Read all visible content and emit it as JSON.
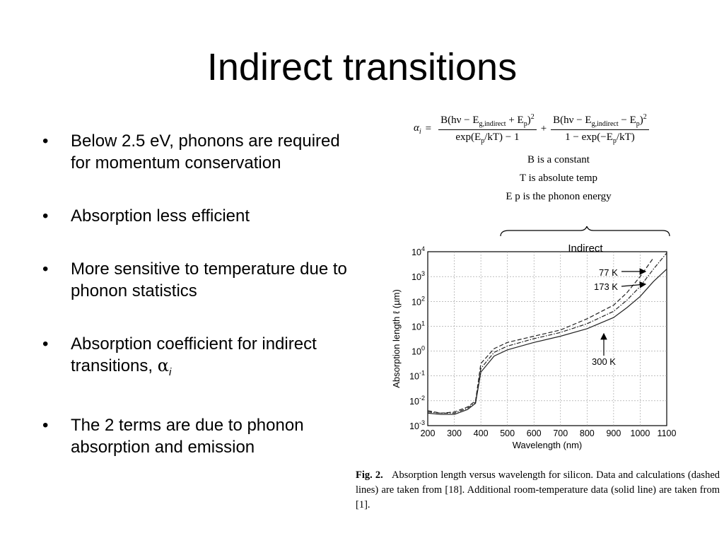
{
  "slide": {
    "title": "Indirect transitions",
    "bullets": [
      "Below 2.5 eV, phonons are required for momentum conservation",
      "Absorption less efficient",
      "More sensitive to temperature due to phonon statistics",
      "Absorption coefficient for indirect transitions, ",
      "The 2 terms are due to phonon absorption and emission"
    ],
    "alpha_symbol": "α",
    "alpha_subscript": "i"
  },
  "formula": {
    "lhs": "α",
    "lhs_sub": "i",
    "term1_num": "B(hν − E",
    "term1_num_sub": "g,indirect",
    "term1_num_rest": " + E",
    "term1_num_p": "p",
    "term1_num_end": ")",
    "term1_den": "exp(E",
    "term1_den_sub": "p",
    "term1_den_rest": "/kT) − 1",
    "term2_num": "B(hν − E",
    "term2_num_sub": "g,indirect",
    "term2_num_rest": " − E",
    "term2_num_p": "p",
    "term2_num_end": ")",
    "term2_den": "1 − exp(−E",
    "term2_den_sub": "p",
    "term2_den_rest": "/kT)",
    "sq": "2",
    "notes": [
      "B is a constant",
      "T is absolute temp",
      "E p  is the phonon energy"
    ]
  },
  "chart_data": {
    "type": "line",
    "xlabel": "Wavelength (nm)",
    "ylabel": "Absorption length ℓ (µm)",
    "xlim": [
      200,
      1100
    ],
    "ylim_log10": [
      -3,
      4
    ],
    "x_ticks": [
      "200",
      "300",
      "400",
      "500",
      "600",
      "700",
      "800",
      "900",
      "1000",
      "1100"
    ],
    "y_ticks": [
      "10-3",
      "10-2",
      "10-1",
      "100",
      "101",
      "102",
      "103",
      "104"
    ],
    "grid": true,
    "region_label": "Indirect",
    "annotations": [
      "77 K",
      "173 K",
      "300 K"
    ],
    "series": [
      {
        "name": "77 K",
        "style": "dashed",
        "x": [
          200,
          250,
          300,
          350,
          380,
          400,
          450,
          500,
          600,
          700,
          800,
          900,
          950,
          1000,
          1050
        ],
        "log10_y": [
          -2.4,
          -2.5,
          -2.45,
          -2.25,
          -2.0,
          -0.5,
          0.1,
          0.35,
          0.6,
          0.85,
          1.3,
          1.85,
          2.35,
          3.0,
          3.75
        ]
      },
      {
        "name": "173 K",
        "style": "dash-dot",
        "x": [
          200,
          250,
          300,
          350,
          380,
          400,
          450,
          500,
          600,
          700,
          800,
          900,
          950,
          1000,
          1050,
          1100
        ],
        "log10_y": [
          -2.45,
          -2.5,
          -2.5,
          -2.3,
          -2.05,
          -0.7,
          -0.05,
          0.2,
          0.5,
          0.75,
          1.1,
          1.6,
          2.05,
          2.6,
          3.3,
          3.95
        ]
      },
      {
        "name": "300 K",
        "style": "solid",
        "x": [
          200,
          250,
          300,
          350,
          380,
          400,
          450,
          500,
          600,
          700,
          800,
          900,
          950,
          1000,
          1050,
          1100
        ],
        "log10_y": [
          -2.5,
          -2.55,
          -2.55,
          -2.35,
          -2.1,
          -0.85,
          -0.2,
          0.05,
          0.35,
          0.6,
          0.9,
          1.35,
          1.75,
          2.2,
          2.8,
          3.3
        ]
      }
    ]
  },
  "caption": {
    "label": "Fig. 2.",
    "text": "Absorption length versus wavelength for silicon. Data and calculations (dashed lines) are taken from [18]. Additional room-temperature data (solid line) are taken from [1]."
  }
}
